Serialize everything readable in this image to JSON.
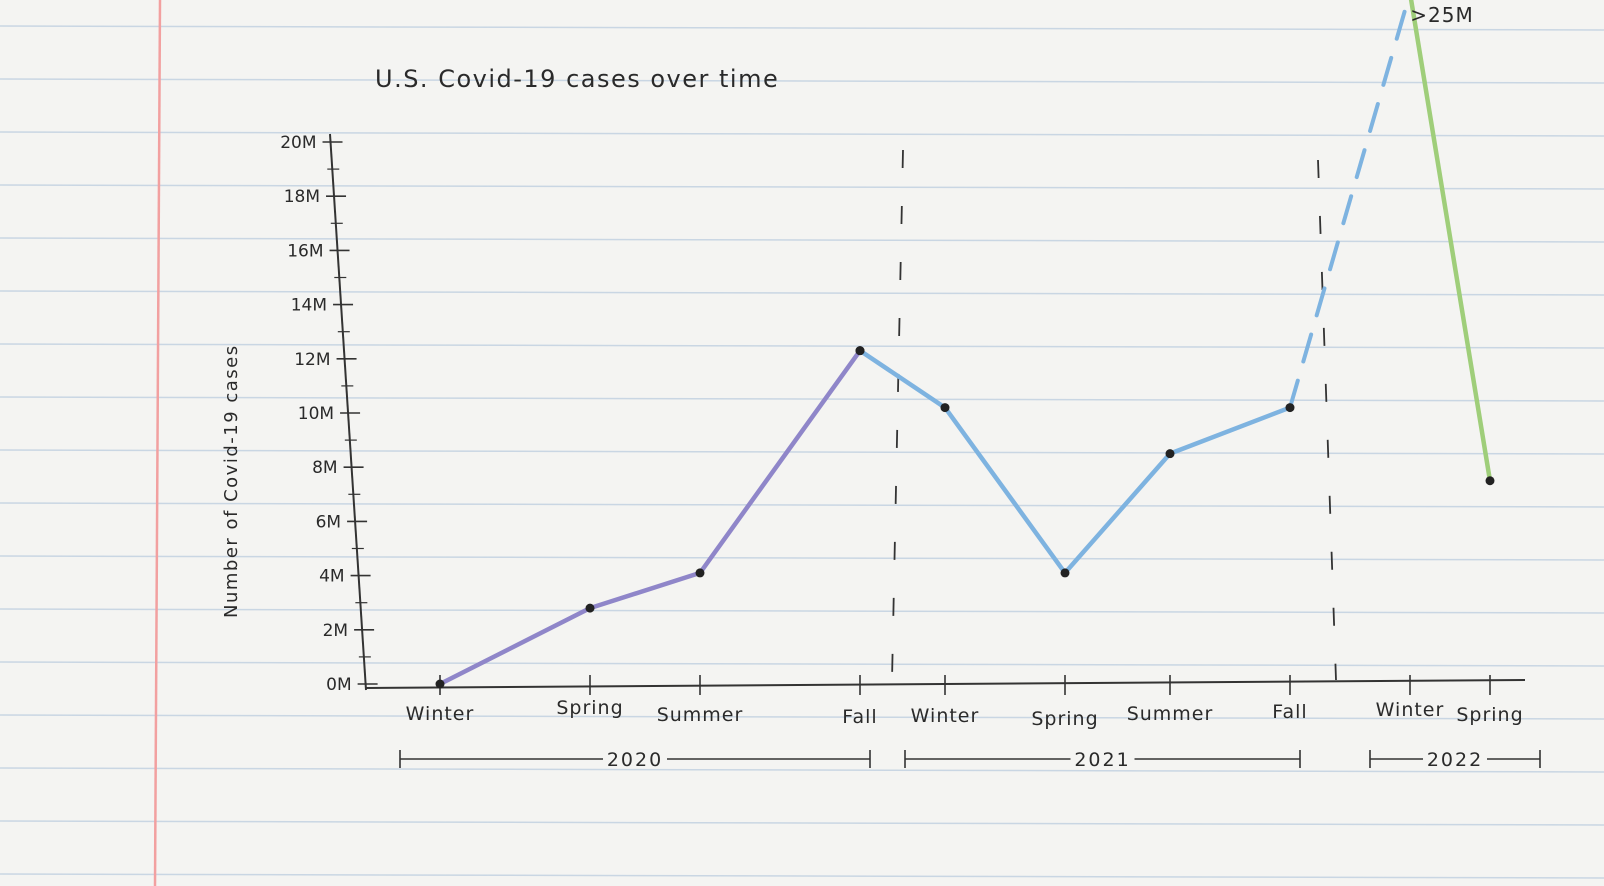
{
  "chart_data": {
    "type": "line",
    "title": "U.S. Covid-19 cases over time",
    "ylabel": "Number of Covid-19 cases",
    "xlabel": "",
    "ylim": [
      0,
      20
    ],
    "yticks": [
      "0M",
      "2M",
      "4M",
      "6M",
      "8M",
      "10M",
      "12M",
      "14M",
      "16M",
      "18M",
      "20M"
    ],
    "categories": [
      "Winter",
      "Spring",
      "Summer",
      "Fall",
      "Winter",
      "Spring",
      "Summer",
      "Fall",
      "Winter",
      "Spring"
    ],
    "year_groups": [
      {
        "label": "2020",
        "from": 0,
        "to": 3
      },
      {
        "label": "2021",
        "from": 4,
        "to": 7
      },
      {
        "label": "2022",
        "from": 8,
        "to": 9
      }
    ],
    "series": [
      {
        "segment": "2020",
        "color": "#8f86c9",
        "points": [
          [
            0,
            0
          ],
          [
            1,
            2.8
          ],
          [
            2,
            4.1
          ],
          [
            3,
            12.3
          ]
        ]
      },
      {
        "segment": "2021",
        "color": "#7eb3e0",
        "points": [
          [
            3,
            12.3
          ],
          [
            4,
            10.2
          ],
          [
            5,
            4.1
          ],
          [
            6,
            8.5
          ],
          [
            7,
            10.2
          ]
        ]
      },
      {
        "segment": "2022",
        "color": "#9fce7a",
        "points": [
          [
            8,
            25.5
          ],
          [
            9,
            7.5
          ]
        ]
      }
    ],
    "peak_annotation": ">25M",
    "grid": false,
    "legend": "none"
  }
}
